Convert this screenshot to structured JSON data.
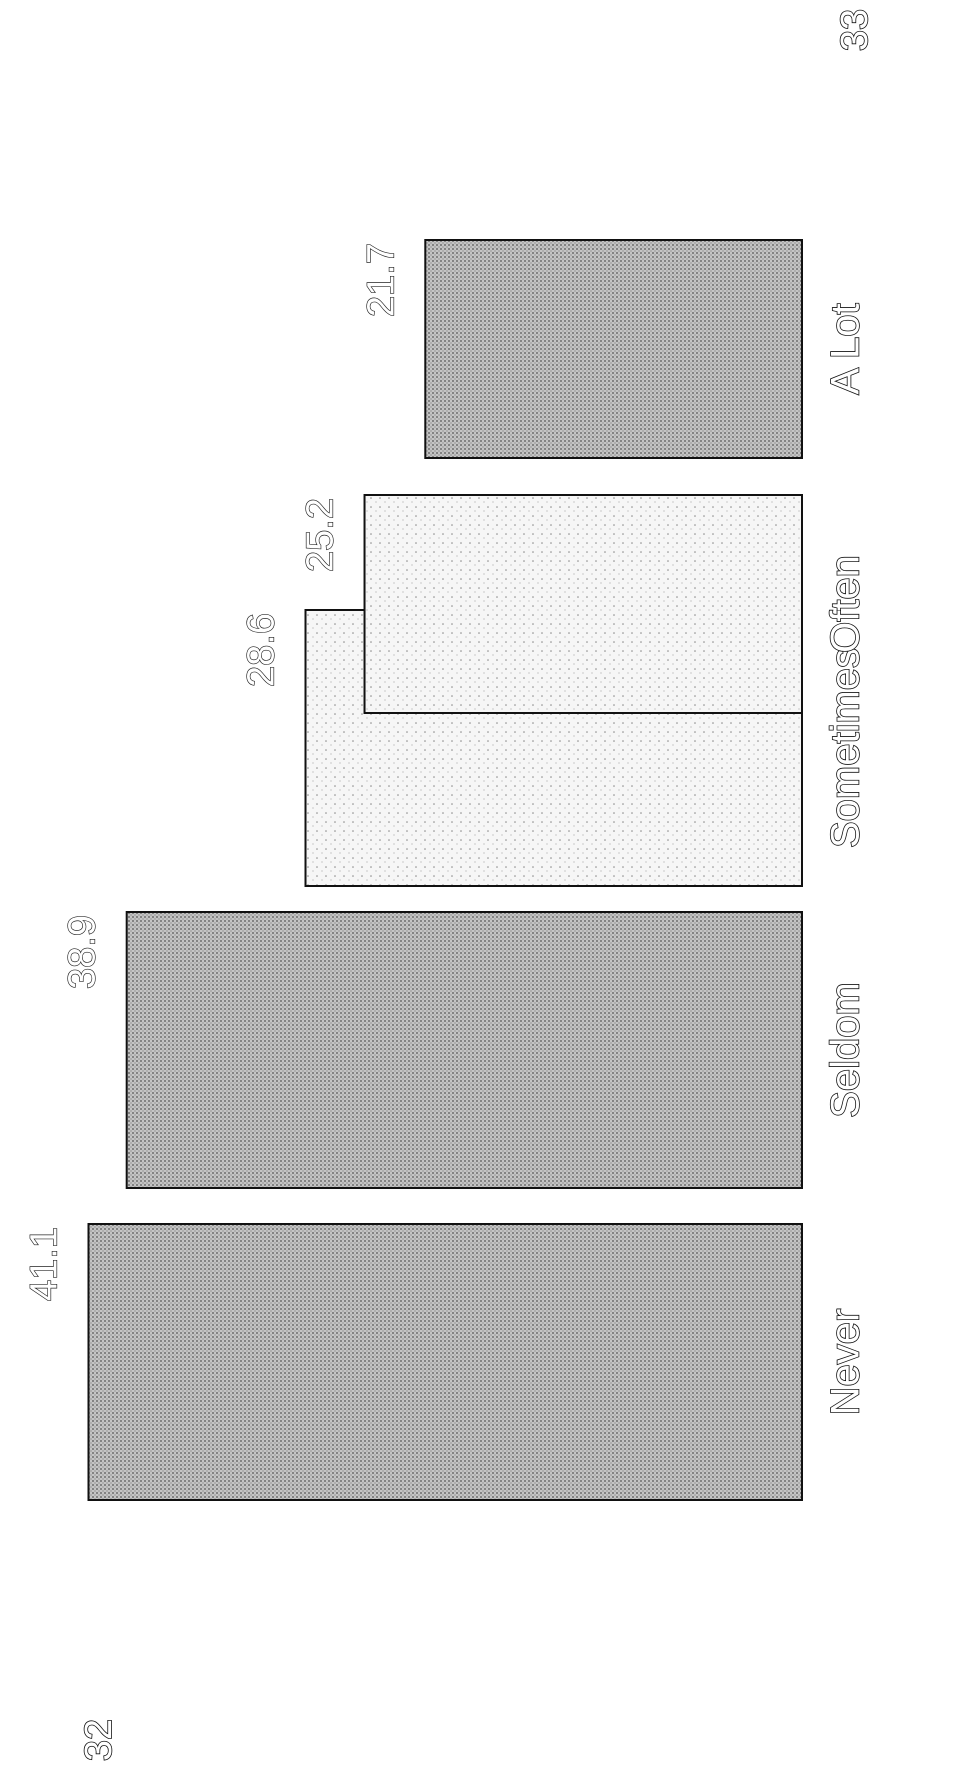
{
  "chart_data": {
    "type": "bar",
    "orientation": "rotated-90",
    "categories": [
      "Never",
      "Seldom",
      "Sometimes",
      "Often",
      "A Lot"
    ],
    "values": [
      41.1,
      38.9,
      28.6,
      25.2,
      21.7
    ],
    "data_labels": [
      "41.1",
      "38.9",
      "28.6",
      "25.2",
      "21.7"
    ],
    "fills": [
      "dense",
      "dense",
      "sparse",
      "sparse",
      "dense"
    ],
    "title": "",
    "xlabel": "",
    "ylabel": "",
    "grid": false
  },
  "page_numbers": [
    "32",
    "33"
  ],
  "colors": {
    "bar_outline": "#111111",
    "dense_fill": "#a8a8a8",
    "sparse_fill": "#eeeeee",
    "background": "#ffffff"
  }
}
